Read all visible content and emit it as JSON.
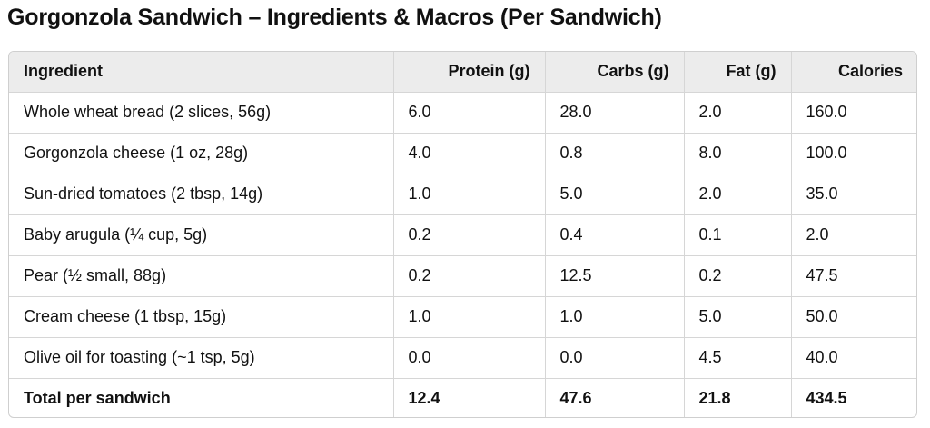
{
  "title": "Gorgonzola Sandwich – Ingredients & Macros (Per Sandwich)",
  "columns": [
    "Ingredient",
    "Protein (g)",
    "Carbs (g)",
    "Fat (g)",
    "Calories"
  ],
  "rows": [
    {
      "ingredient": "Whole wheat bread (2 slices, 56g)",
      "protein": "6.0",
      "carbs": "28.0",
      "fat": "2.0",
      "calories": "160.0"
    },
    {
      "ingredient": "Gorgonzola cheese (1 oz, 28g)",
      "protein": "4.0",
      "carbs": "0.8",
      "fat": "8.0",
      "calories": "100.0"
    },
    {
      "ingredient": "Sun-dried tomatoes (2 tbsp, 14g)",
      "protein": "1.0",
      "carbs": "5.0",
      "fat": "2.0",
      "calories": "35.0"
    },
    {
      "ingredient": "Baby arugula (¼ cup, 5g)",
      "protein": "0.2",
      "carbs": "0.4",
      "fat": "0.1",
      "calories": "2.0"
    },
    {
      "ingredient": "Pear (½ small, 88g)",
      "protein": "0.2",
      "carbs": "12.5",
      "fat": "0.2",
      "calories": "47.5"
    },
    {
      "ingredient": "Cream cheese (1 tbsp, 15g)",
      "protein": "1.0",
      "carbs": "1.0",
      "fat": "5.0",
      "calories": "50.0"
    },
    {
      "ingredient": "Olive oil for toasting (~1 tsp, 5g)",
      "protein": "0.0",
      "carbs": "0.0",
      "fat": "4.5",
      "calories": "40.0"
    }
  ],
  "total": {
    "ingredient": "Total per sandwich",
    "protein": "12.4",
    "carbs": "47.6",
    "fat": "21.8",
    "calories": "434.5"
  }
}
